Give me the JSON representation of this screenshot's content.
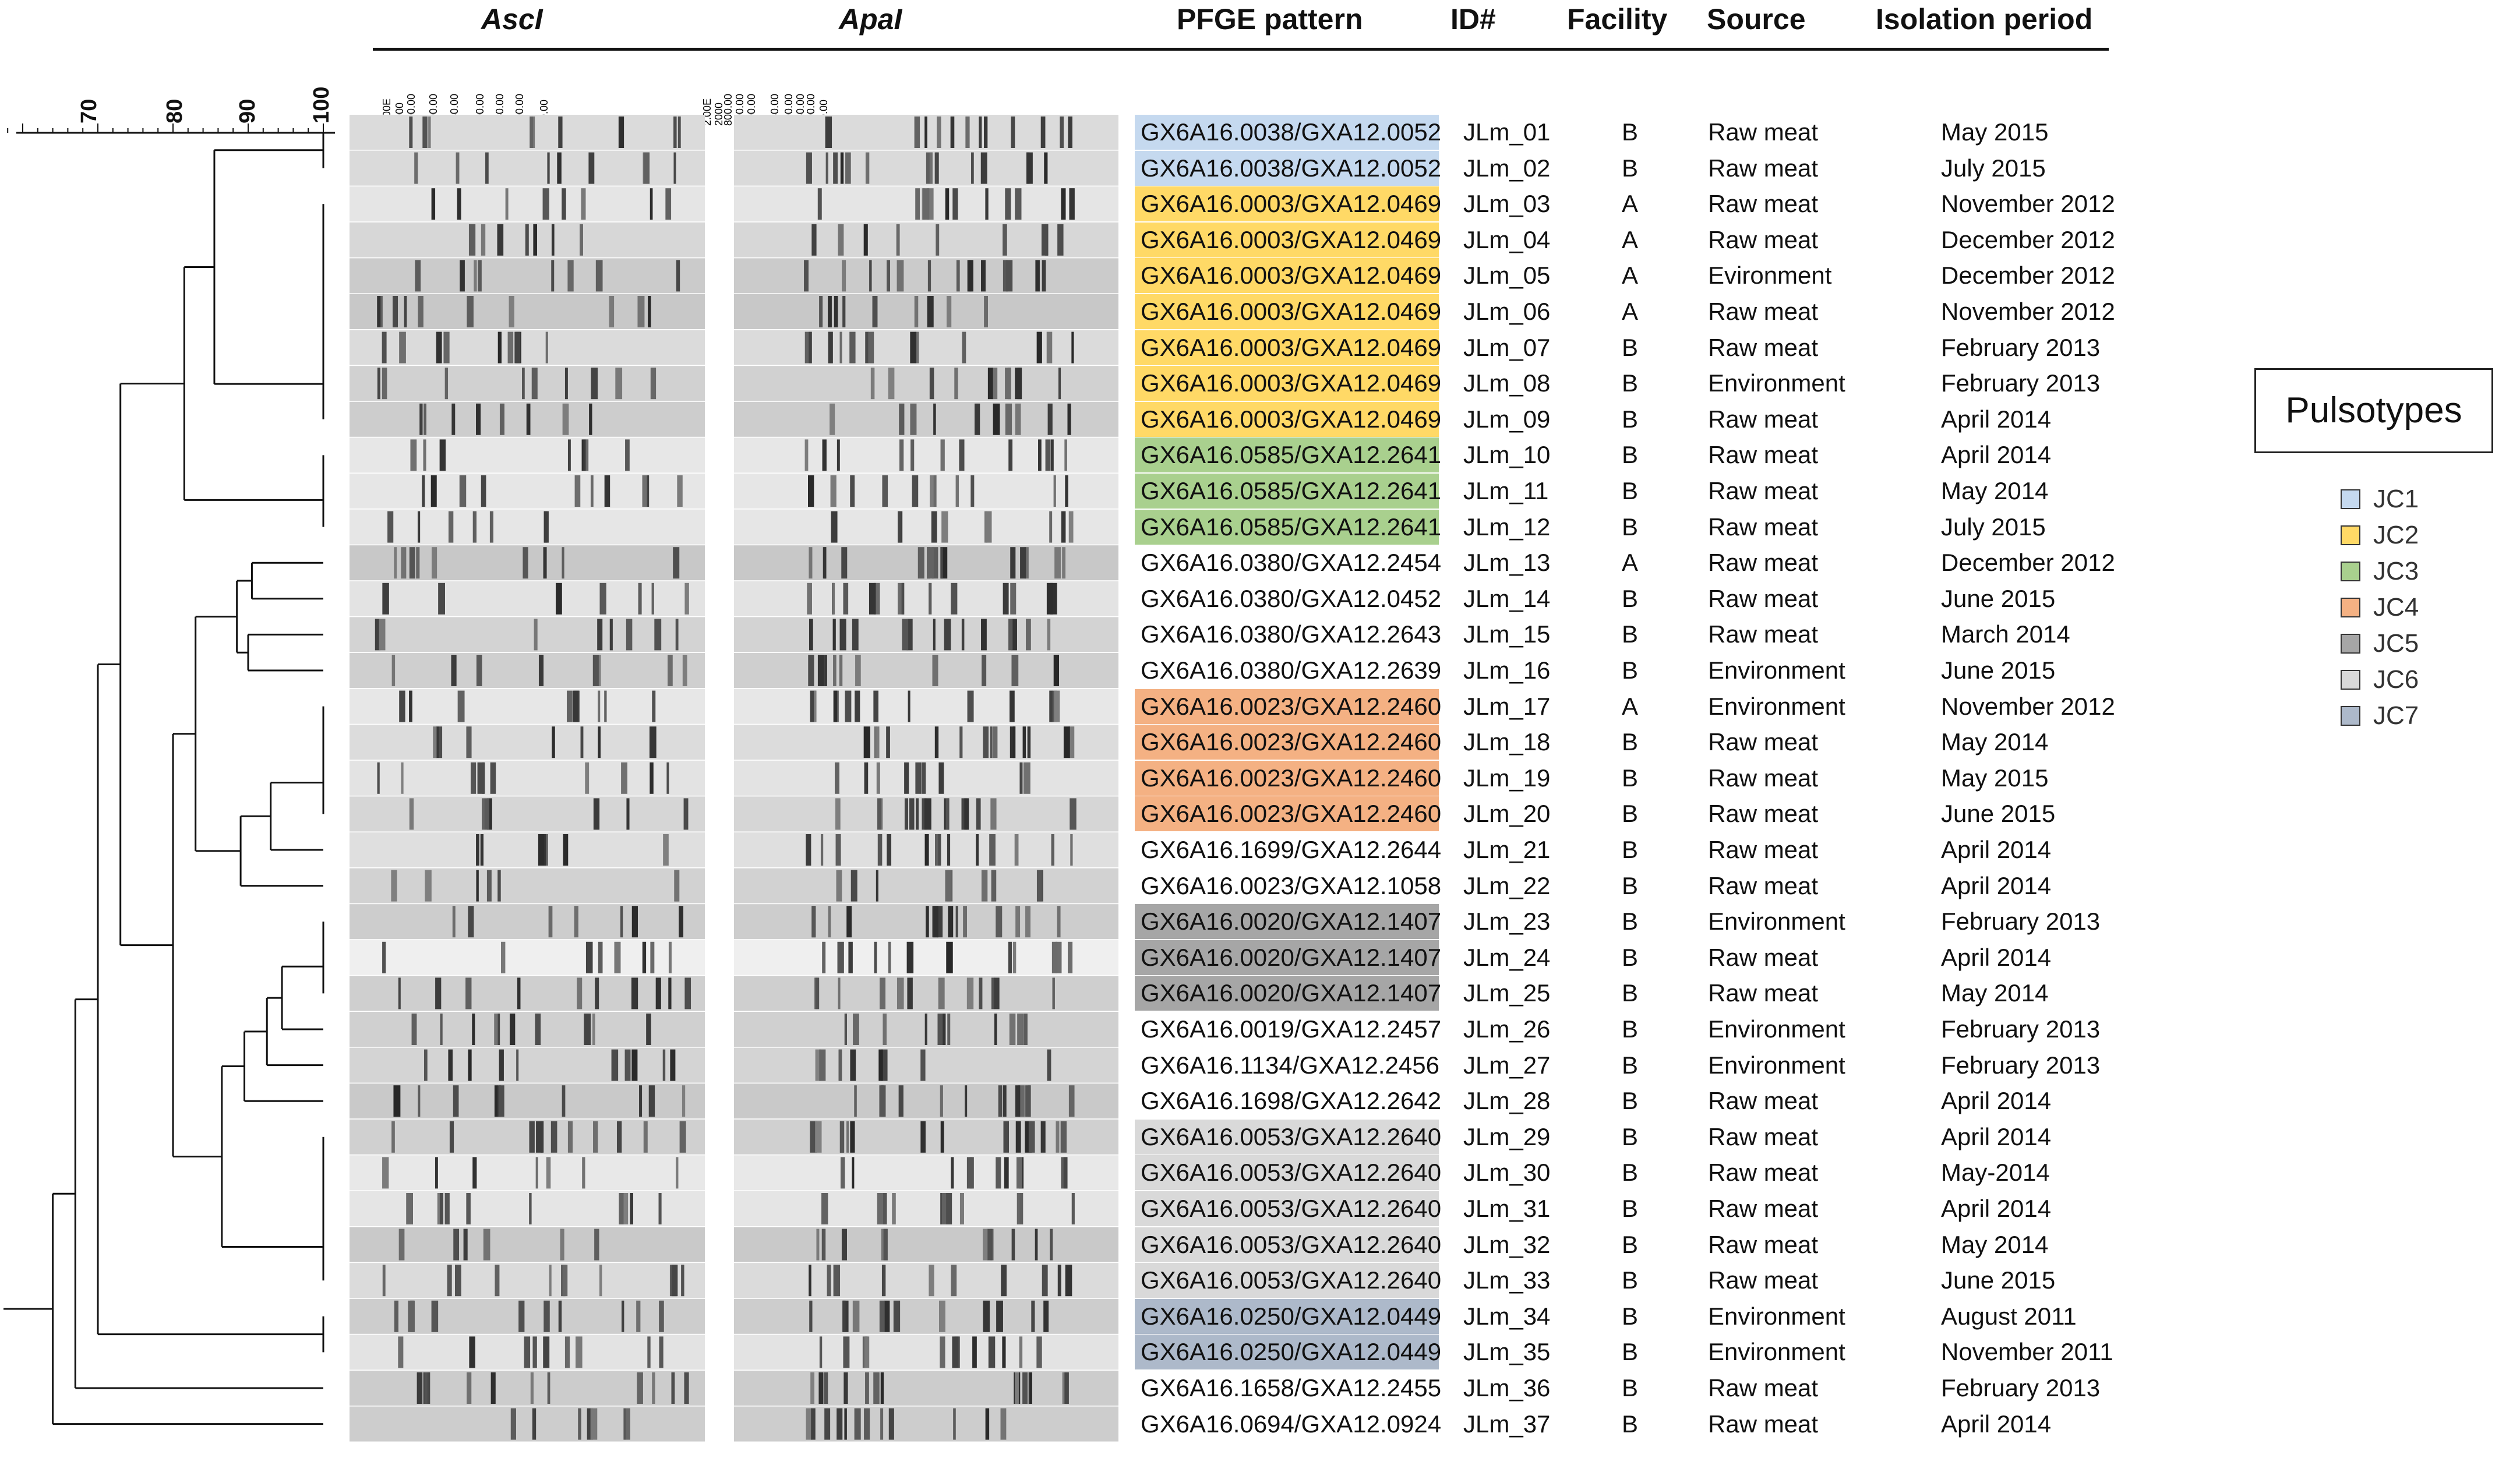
{
  "headers": {
    "ascI": "AscI",
    "apaI": "ApaI",
    "pfge_pattern": "PFGE pattern",
    "id": "ID#",
    "facility": "Facility",
    "source": "Source",
    "isolation_period": "Isolation period"
  },
  "scale": {
    "labels": [
      "70",
      "80",
      "90",
      "100"
    ],
    "ticks": [
      70,
      80,
      90,
      100
    ]
  },
  "gel_markers": {
    "ascI": [
      "2.00E",
      "2000",
      "600.00",
      "400.00",
      "250.00",
      "200.00",
      "150.00",
      "100.00",
      "50.00"
    ],
    "apaI": [
      "2.00E",
      "2000",
      "800.00",
      "500.00",
      "400.00",
      "250.00",
      "200.00",
      "150.00",
      "100.00",
      "50.00"
    ]
  },
  "pulsotype_colors": {
    "JC1": "#c5d9ef",
    "JC2": "#ffd966",
    "JC3": "#a9d08e",
    "JC4": "#f4b183",
    "JC5": "#a6a6a6",
    "JC6": "#d9d9d9",
    "JC7": "#adb9ca"
  },
  "legend": {
    "title": "Pulsotypes",
    "items": [
      {
        "label": "JC1",
        "color": "#c5d9ef"
      },
      {
        "label": "JC2",
        "color": "#ffd966"
      },
      {
        "label": "JC3",
        "color": "#a9d08e"
      },
      {
        "label": "JC4",
        "color": "#f4b183"
      },
      {
        "label": "JC5",
        "color": "#a6a6a6"
      },
      {
        "label": "JC6",
        "color": "#d9d9d9"
      },
      {
        "label": "JC7",
        "color": "#adb9ca"
      }
    ]
  },
  "isolates": [
    {
      "pfge": "GX6A16.0038/GXA12.0052",
      "id": "JLm_01",
      "facility": "B",
      "source": "Raw meat",
      "period": "May 2015",
      "pulsotype": "JC1"
    },
    {
      "pfge": "GX6A16.0038/GXA12.0052",
      "id": "JLm_02",
      "facility": "B",
      "source": "Raw meat",
      "period": "July 2015",
      "pulsotype": "JC1"
    },
    {
      "pfge": "GX6A16.0003/GXA12.0469",
      "id": "JLm_03",
      "facility": "A",
      "source": "Raw meat",
      "period": "November 2012",
      "pulsotype": "JC2"
    },
    {
      "pfge": "GX6A16.0003/GXA12.0469",
      "id": "JLm_04",
      "facility": "A",
      "source": "Raw meat",
      "period": "December 2012",
      "pulsotype": "JC2"
    },
    {
      "pfge": "GX6A16.0003/GXA12.0469",
      "id": "JLm_05",
      "facility": "A",
      "source": "Evironment",
      "period": "December 2012",
      "pulsotype": "JC2"
    },
    {
      "pfge": "GX6A16.0003/GXA12.0469",
      "id": "JLm_06",
      "facility": "A",
      "source": "Raw meat",
      "period": "November 2012",
      "pulsotype": "JC2"
    },
    {
      "pfge": "GX6A16.0003/GXA12.0469",
      "id": "JLm_07",
      "facility": "B",
      "source": "Raw meat",
      "period": "February 2013",
      "pulsotype": "JC2"
    },
    {
      "pfge": "GX6A16.0003/GXA12.0469",
      "id": "JLm_08",
      "facility": "B",
      "source": "Environment",
      "period": "February 2013",
      "pulsotype": "JC2"
    },
    {
      "pfge": "GX6A16.0003/GXA12.0469",
      "id": "JLm_09",
      "facility": "B",
      "source": "Raw meat",
      "period": "April 2014",
      "pulsotype": "JC2"
    },
    {
      "pfge": "GX6A16.0585/GXA12.2641",
      "id": "JLm_10",
      "facility": "B",
      "source": "Raw meat",
      "period": "April 2014",
      "pulsotype": "JC3"
    },
    {
      "pfge": "GX6A16.0585/GXA12.2641",
      "id": "JLm_11",
      "facility": "B",
      "source": "Raw meat",
      "period": "May 2014",
      "pulsotype": "JC3"
    },
    {
      "pfge": "GX6A16.0585/GXA12.2641",
      "id": "JLm_12",
      "facility": "B",
      "source": "Raw meat",
      "period": "July 2015",
      "pulsotype": "JC3"
    },
    {
      "pfge": "GX6A16.0380/GXA12.2454",
      "id": "JLm_13",
      "facility": "A",
      "source": "Raw meat",
      "period": "December 2012",
      "pulsotype": ""
    },
    {
      "pfge": "GX6A16.0380/GXA12.0452",
      "id": "JLm_14",
      "facility": "B",
      "source": "Raw meat",
      "period": "June 2015",
      "pulsotype": ""
    },
    {
      "pfge": "GX6A16.0380/GXA12.2643",
      "id": "JLm_15",
      "facility": "B",
      "source": "Raw meat",
      "period": "March 2014",
      "pulsotype": ""
    },
    {
      "pfge": "GX6A16.0380/GXA12.2639",
      "id": "JLm_16",
      "facility": "B",
      "source": "Environment",
      "period": "June 2015",
      "pulsotype": ""
    },
    {
      "pfge": "GX6A16.0023/GXA12.2460",
      "id": "JLm_17",
      "facility": "A",
      "source": "Environment",
      "period": "November 2012",
      "pulsotype": "JC4"
    },
    {
      "pfge": "GX6A16.0023/GXA12.2460",
      "id": "JLm_18",
      "facility": "B",
      "source": "Raw meat",
      "period": "May 2014",
      "pulsotype": "JC4"
    },
    {
      "pfge": "GX6A16.0023/GXA12.2460",
      "id": "JLm_19",
      "facility": "B",
      "source": "Raw meat",
      "period": "May 2015",
      "pulsotype": "JC4"
    },
    {
      "pfge": "GX6A16.0023/GXA12.2460",
      "id": "JLm_20",
      "facility": "B",
      "source": "Raw meat",
      "period": "June 2015",
      "pulsotype": "JC4"
    },
    {
      "pfge": "GX6A16.1699/GXA12.2644",
      "id": "JLm_21",
      "facility": "B",
      "source": "Raw meat",
      "period": "April 2014",
      "pulsotype": ""
    },
    {
      "pfge": "GX6A16.0023/GXA12.1058",
      "id": "JLm_22",
      "facility": "B",
      "source": "Raw meat",
      "period": "April 2014",
      "pulsotype": ""
    },
    {
      "pfge": "GX6A16.0020/GXA12.1407",
      "id": "JLm_23",
      "facility": "B",
      "source": "Environment",
      "period": "February 2013",
      "pulsotype": "JC5"
    },
    {
      "pfge": "GX6A16.0020/GXA12.1407",
      "id": "JLm_24",
      "facility": "B",
      "source": "Raw meat",
      "period": "April 2014",
      "pulsotype": "JC5"
    },
    {
      "pfge": "GX6A16.0020/GXA12.1407",
      "id": "JLm_25",
      "facility": "B",
      "source": "Raw meat",
      "period": "May 2014",
      "pulsotype": "JC5"
    },
    {
      "pfge": "GX6A16.0019/GXA12.2457",
      "id": "JLm_26",
      "facility": "B",
      "source": "Environment",
      "period": "February 2013",
      "pulsotype": ""
    },
    {
      "pfge": "GX6A16.1134/GXA12.2456",
      "id": "JLm_27",
      "facility": "B",
      "source": "Environment",
      "period": "February 2013",
      "pulsotype": ""
    },
    {
      "pfge": "GX6A16.1698/GXA12.2642",
      "id": "JLm_28",
      "facility": "B",
      "source": "Raw meat",
      "period": "April 2014",
      "pulsotype": ""
    },
    {
      "pfge": "GX6A16.0053/GXA12.2640",
      "id": "JLm_29",
      "facility": "B",
      "source": "Raw meat",
      "period": "April 2014",
      "pulsotype": "JC6"
    },
    {
      "pfge": "GX6A16.0053/GXA12.2640",
      "id": "JLm_30",
      "facility": "B",
      "source": "Raw meat",
      "period": "May-2014",
      "pulsotype": "JC6"
    },
    {
      "pfge": "GX6A16.0053/GXA12.2640",
      "id": "JLm_31",
      "facility": "B",
      "source": "Raw meat",
      "period": "April 2014",
      "pulsotype": "JC6"
    },
    {
      "pfge": "GX6A16.0053/GXA12.2640",
      "id": "JLm_32",
      "facility": "B",
      "source": "Raw meat",
      "period": "May 2014",
      "pulsotype": "JC6"
    },
    {
      "pfge": "GX6A16.0053/GXA12.2640",
      "id": "JLm_33",
      "facility": "B",
      "source": "Raw meat",
      "period": "June 2015",
      "pulsotype": "JC6"
    },
    {
      "pfge": "GX6A16.0250/GXA12.0449",
      "id": "JLm_34",
      "facility": "B",
      "source": "Environment",
      "period": "August 2011",
      "pulsotype": "JC7"
    },
    {
      "pfge": "GX6A16.0250/GXA12.0449",
      "id": "JLm_35",
      "facility": "B",
      "source": "Environment",
      "period": "November 2011",
      "pulsotype": "JC7"
    },
    {
      "pfge": "GX6A16.1658/GXA12.2455",
      "id": "JLm_36",
      "facility": "B",
      "source": "Raw meat",
      "period": "February 2013",
      "pulsotype": ""
    },
    {
      "pfge": "GX6A16.0694/GXA12.0924",
      "id": "JLm_37",
      "facility": "B",
      "source": "Raw meat",
      "period": "April 2014",
      "pulsotype": ""
    }
  ]
}
